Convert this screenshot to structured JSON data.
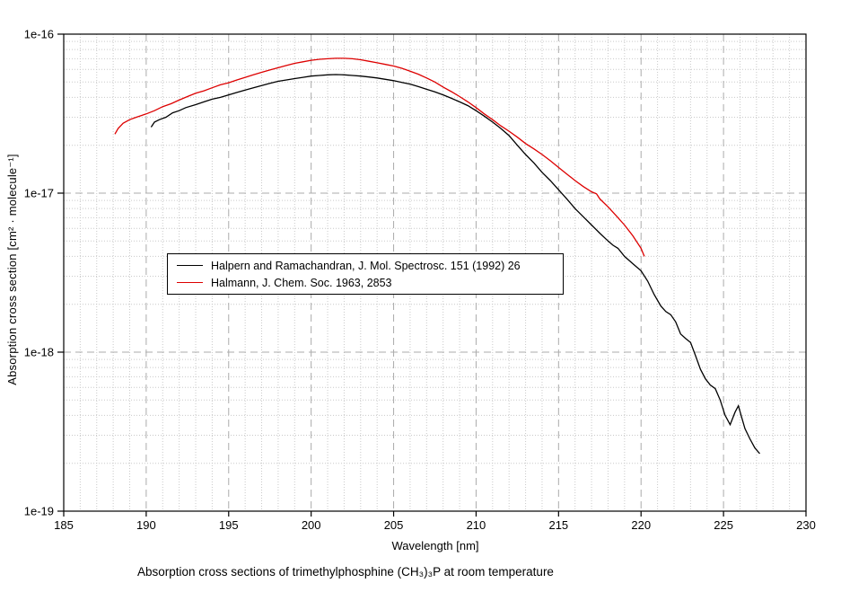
{
  "chart_data": {
    "type": "line",
    "title": "Absorption cross sections of trimethylphosphine (CH₃)₃P at room temperature",
    "xlabel": "Wavelength [nm]",
    "ylabel": "Absorption cross section [cm² · molecule⁻¹]",
    "x_range": [
      185,
      230
    ],
    "x_ticks": [
      185,
      190,
      195,
      200,
      205,
      210,
      215,
      220,
      225,
      230
    ],
    "x_minor_tick_step": 1,
    "y_scale": "log",
    "y_range": [
      1e-19,
      1e-16
    ],
    "y_ticks": [
      {
        "label": "1e-16",
        "value": 1e-16
      },
      {
        "label": "1e-17",
        "value": 1e-17
      },
      {
        "label": "1e-18",
        "value": 1e-18
      },
      {
        "label": "1e-19",
        "value": 1e-19
      }
    ],
    "grid": {
      "major_color": "#ababab",
      "minor_color": "#c9c9c9",
      "major_dash": "8,5",
      "minor_dash": "1,2",
      "frame_color": "#000000",
      "background": "#ffffff"
    },
    "legend_position": "inside-middle-left",
    "series": [
      {
        "name": "Halpern and Ramachandran, J. Mol. Spectrosc. 151 (1992) 26",
        "color": "#000000",
        "points": [
          [
            190.3,
            2.6e-17
          ],
          [
            190.5,
            2.8e-17
          ],
          [
            190.8,
            2.9e-17
          ],
          [
            191.2,
            3e-17
          ],
          [
            191.6,
            3.2e-17
          ],
          [
            192.0,
            3.3e-17
          ],
          [
            192.4,
            3.45e-17
          ],
          [
            193.0,
            3.6e-17
          ],
          [
            193.5,
            3.75e-17
          ],
          [
            194.0,
            3.9e-17
          ],
          [
            194.5,
            4e-17
          ],
          [
            195.0,
            4.15e-17
          ],
          [
            195.5,
            4.3e-17
          ],
          [
            196.0,
            4.45e-17
          ],
          [
            196.5,
            4.6e-17
          ],
          [
            197.0,
            4.75e-17
          ],
          [
            197.5,
            4.9e-17
          ],
          [
            198.0,
            5.05e-17
          ],
          [
            198.5,
            5.15e-17
          ],
          [
            199.0,
            5.25e-17
          ],
          [
            199.5,
            5.35e-17
          ],
          [
            200.0,
            5.45e-17
          ],
          [
            200.5,
            5.5e-17
          ],
          [
            201.0,
            5.55e-17
          ],
          [
            201.5,
            5.57e-17
          ],
          [
            202.0,
            5.55e-17
          ],
          [
            202.5,
            5.5e-17
          ],
          [
            203.0,
            5.45e-17
          ],
          [
            203.5,
            5.38e-17
          ],
          [
            204.0,
            5.3e-17
          ],
          [
            204.5,
            5.2e-17
          ],
          [
            205.0,
            5.1e-17
          ],
          [
            205.5,
            4.97e-17
          ],
          [
            206.0,
            4.85e-17
          ],
          [
            206.5,
            4.68e-17
          ],
          [
            207.0,
            4.5e-17
          ],
          [
            207.5,
            4.33e-17
          ],
          [
            208.0,
            4.15e-17
          ],
          [
            208.5,
            3.95e-17
          ],
          [
            209.0,
            3.75e-17
          ],
          [
            209.5,
            3.55e-17
          ],
          [
            210.0,
            3.3e-17
          ],
          [
            210.5,
            3.05e-17
          ],
          [
            211.0,
            2.8e-17
          ],
          [
            211.5,
            2.55e-17
          ],
          [
            212.0,
            2.3e-17
          ],
          [
            212.5,
            2e-17
          ],
          [
            213.0,
            1.75e-17
          ],
          [
            213.5,
            1.55e-17
          ],
          [
            214.0,
            1.35e-17
          ],
          [
            214.5,
            1.2e-17
          ],
          [
            215.0,
            1.05e-17
          ],
          [
            215.5,
            9.2e-18
          ],
          [
            216.0,
            8e-18
          ],
          [
            216.5,
            7.1e-18
          ],
          [
            217.0,
            6.3e-18
          ],
          [
            217.5,
            5.6e-18
          ],
          [
            218.0,
            5e-18
          ],
          [
            218.3,
            4.7e-18
          ],
          [
            218.6,
            4.5e-18
          ],
          [
            219.0,
            4e-18
          ],
          [
            219.5,
            3.6e-18
          ],
          [
            220.0,
            3.25e-18
          ],
          [
            220.4,
            2.8e-18
          ],
          [
            220.8,
            2.3e-18
          ],
          [
            221.2,
            1.95e-18
          ],
          [
            221.5,
            1.8e-18
          ],
          [
            221.8,
            1.72e-18
          ],
          [
            222.1,
            1.55e-18
          ],
          [
            222.4,
            1.3e-18
          ],
          [
            222.7,
            1.22e-18
          ],
          [
            223.0,
            1.15e-18
          ],
          [
            223.3,
            9.5e-19
          ],
          [
            223.6,
            7.8e-19
          ],
          [
            223.9,
            6.8e-19
          ],
          [
            224.2,
            6.2e-19
          ],
          [
            224.5,
            5.9e-19
          ],
          [
            224.8,
            5e-19
          ],
          [
            225.1,
            4e-19
          ],
          [
            225.4,
            3.5e-19
          ],
          [
            225.7,
            4.2e-19
          ],
          [
            225.9,
            4.6e-19
          ],
          [
            226.1,
            3.9e-19
          ],
          [
            226.3,
            3.3e-19
          ],
          [
            226.6,
            2.85e-19
          ],
          [
            226.9,
            2.5e-19
          ],
          [
            227.2,
            2.3e-19
          ]
        ]
      },
      {
        "name": "Halmann, J. Chem. Soc. 1963, 2853",
        "color": "#dd0000",
        "points": [
          [
            188.1,
            2.35e-17
          ],
          [
            188.3,
            2.55e-17
          ],
          [
            188.6,
            2.75e-17
          ],
          [
            189.0,
            2.9e-17
          ],
          [
            189.4,
            3e-17
          ],
          [
            190.0,
            3.15e-17
          ],
          [
            190.5,
            3.3e-17
          ],
          [
            191.0,
            3.5e-17
          ],
          [
            191.5,
            3.65e-17
          ],
          [
            192.0,
            3.85e-17
          ],
          [
            192.5,
            4.05e-17
          ],
          [
            193.0,
            4.25e-17
          ],
          [
            193.5,
            4.4e-17
          ],
          [
            194.0,
            4.6e-17
          ],
          [
            194.5,
            4.8e-17
          ],
          [
            195.0,
            4.95e-17
          ],
          [
            195.5,
            5.15e-17
          ],
          [
            196.0,
            5.35e-17
          ],
          [
            196.5,
            5.55e-17
          ],
          [
            197.0,
            5.75e-17
          ],
          [
            197.5,
            5.95e-17
          ],
          [
            198.0,
            6.15e-17
          ],
          [
            198.5,
            6.35e-17
          ],
          [
            199.0,
            6.55e-17
          ],
          [
            199.5,
            6.7e-17
          ],
          [
            200.0,
            6.85e-17
          ],
          [
            200.5,
            6.95e-17
          ],
          [
            201.0,
            7e-17
          ],
          [
            201.5,
            7.05e-17
          ],
          [
            202.0,
            7.05e-17
          ],
          [
            202.5,
            7e-17
          ],
          [
            203.0,
            6.9e-17
          ],
          [
            203.5,
            6.75e-17
          ],
          [
            204.0,
            6.6e-17
          ],
          [
            204.5,
            6.45e-17
          ],
          [
            205.0,
            6.3e-17
          ],
          [
            205.5,
            6.1e-17
          ],
          [
            206.0,
            5.85e-17
          ],
          [
            206.5,
            5.6e-17
          ],
          [
            207.0,
            5.3e-17
          ],
          [
            207.5,
            5e-17
          ],
          [
            208.0,
            4.65e-17
          ],
          [
            208.5,
            4.35e-17
          ],
          [
            209.0,
            4.05e-17
          ],
          [
            209.5,
            3.75e-17
          ],
          [
            210.0,
            3.45e-17
          ],
          [
            210.5,
            3.15e-17
          ],
          [
            211.0,
            2.9e-17
          ],
          [
            211.5,
            2.65e-17
          ],
          [
            212.0,
            2.45e-17
          ],
          [
            212.5,
            2.25e-17
          ],
          [
            213.0,
            2.05e-17
          ],
          [
            213.5,
            1.9e-17
          ],
          [
            214.0,
            1.75e-17
          ],
          [
            214.5,
            1.6e-17
          ],
          [
            215.0,
            1.45e-17
          ],
          [
            215.5,
            1.32e-17
          ],
          [
            216.0,
            1.2e-17
          ],
          [
            216.5,
            1.1e-17
          ],
          [
            217.0,
            1.02e-17
          ],
          [
            217.3,
            9.9e-18
          ],
          [
            217.5,
            9.2e-18
          ],
          [
            218.0,
            8.2e-18
          ],
          [
            218.5,
            7.2e-18
          ],
          [
            219.0,
            6.3e-18
          ],
          [
            219.5,
            5.4e-18
          ],
          [
            220.0,
            4.5e-18
          ],
          [
            220.2,
            4e-18
          ]
        ]
      }
    ]
  }
}
